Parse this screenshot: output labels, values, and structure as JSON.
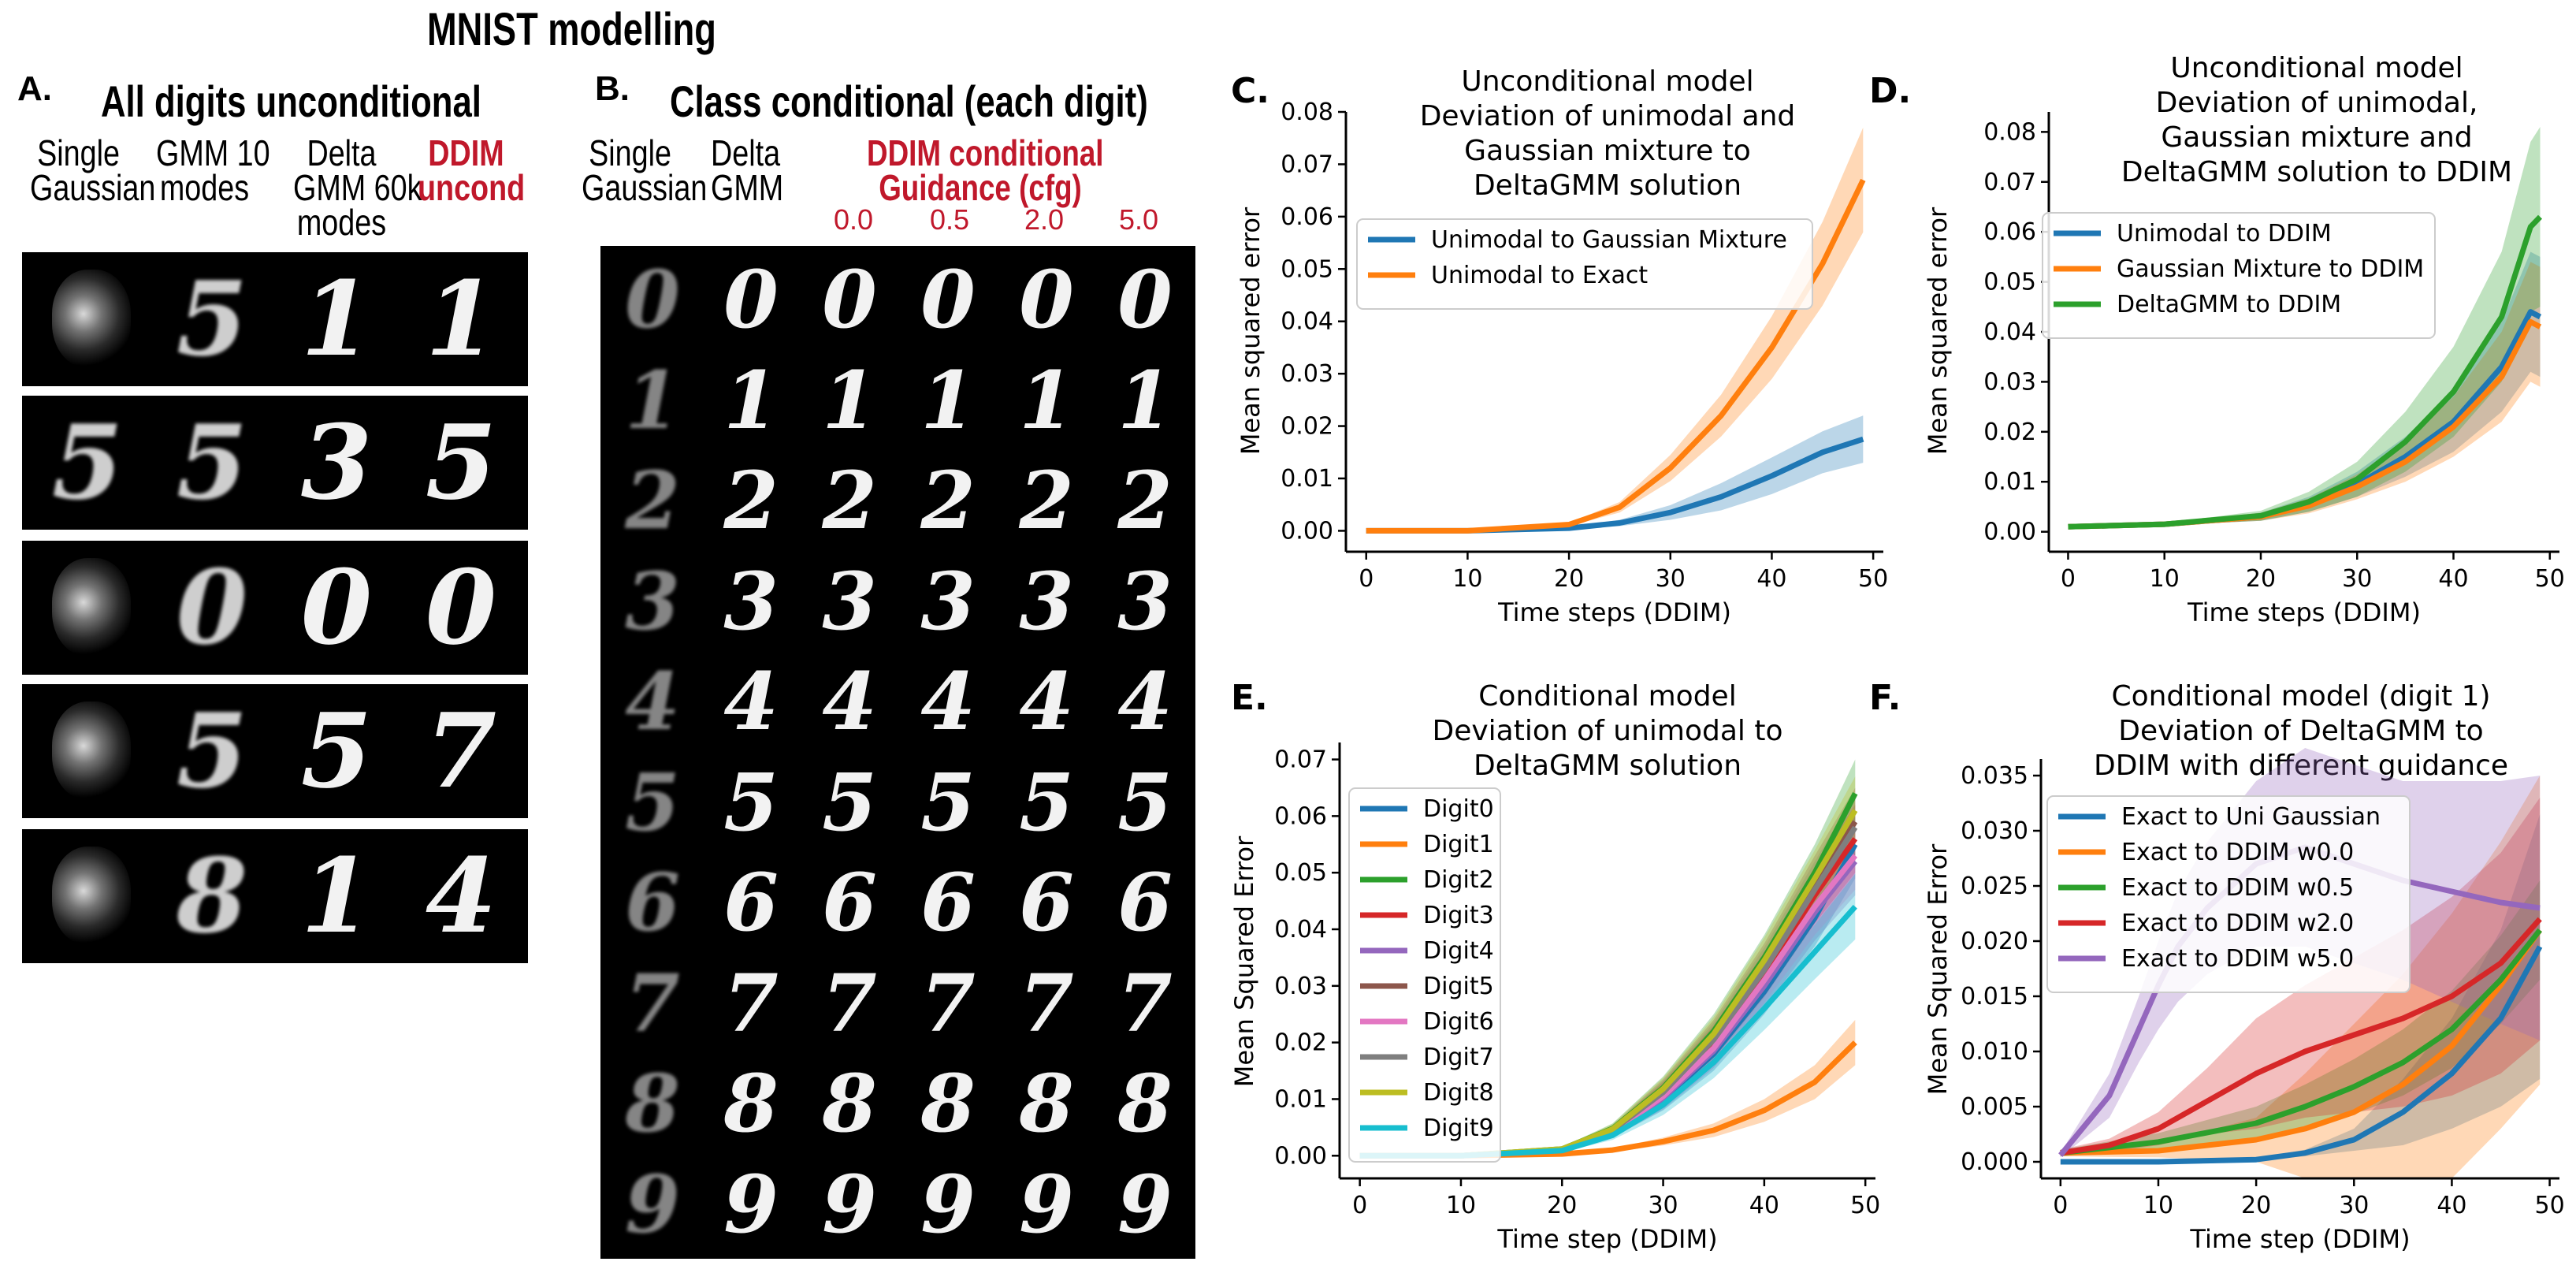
{
  "figure": {
    "title": "MNIST modelling",
    "panelA": {
      "letter": "A.",
      "title": "All digits unconditional",
      "columns": [
        {
          "lines": [
            "Single",
            "Gaussian"
          ],
          "highlight": false
        },
        {
          "lines": [
            "GMM 10",
            "modes"
          ],
          "highlight": false
        },
        {
          "lines": [
            "Delta",
            "GMM 60k",
            "modes"
          ],
          "highlight": false
        },
        {
          "lines": [
            "DDIM",
            "uncond"
          ],
          "highlight": true
        }
      ],
      "rows": [
        [
          "blob",
          "5",
          "1",
          "1"
        ],
        [
          "5",
          "5",
          "3",
          "5"
        ],
        [
          "blob",
          "0",
          "0",
          "0"
        ],
        [
          "blob",
          "5",
          "5",
          "7"
        ],
        [
          "blob",
          "8",
          "1",
          "4"
        ]
      ]
    },
    "panelB": {
      "letter": "B.",
      "title": "Class conditional (each digit)",
      "col_single": [
        "Single",
        "Gaussian"
      ],
      "col_delta": [
        "Delta",
        "GMM"
      ],
      "ddim_header": [
        "DDIM conditional",
        "Guidance (cfg)"
      ],
      "guidance_values": [
        "0.0",
        "0.5",
        "2.0",
        "5.0"
      ],
      "digits": [
        "0",
        "1",
        "2",
        "3",
        "4",
        "5",
        "6",
        "7",
        "8",
        "9"
      ]
    }
  },
  "colors": {
    "accent_red": "#c0182b",
    "blue": "#1f77b4",
    "orange": "#ff7f0e",
    "green": "#2ca02c",
    "red": "#d62728",
    "purple": "#9467bd"
  },
  "chart_data": [
    {
      "id": "C",
      "letter": "C.",
      "type": "line",
      "title": [
        "Unconditional model",
        "Deviation of unimodal and",
        "Gaussian mixture to",
        "DeltaGMM solution"
      ],
      "xlabel": "Time steps (DDIM)",
      "ylabel": "Mean squared error",
      "xlim": [
        -2,
        51
      ],
      "ylim": [
        -0.004,
        0.08
      ],
      "xticks": [
        0,
        10,
        20,
        30,
        40,
        50
      ],
      "xtick_labels": [
        "0",
        "10",
        "20",
        "30",
        "40",
        "50"
      ],
      "yticks": [
        0,
        0.01,
        0.02,
        0.03,
        0.04,
        0.05,
        0.06,
        0.07,
        0.08
      ],
      "ytick_labels": [
        "0.00",
        "0.01",
        "0.02",
        "0.03",
        "0.04",
        "0.05",
        "0.06",
        "0.07",
        "0.08"
      ],
      "legend_pos": "upper-left",
      "series": [
        {
          "name": "Unimodal to Gaussian Mixture",
          "color": "#1f77b4",
          "x": [
            0,
            10,
            20,
            25,
            30,
            35,
            40,
            45,
            49
          ],
          "y": [
            0.0,
            0.0,
            0.0005,
            0.0015,
            0.0035,
            0.0065,
            0.0105,
            0.015,
            0.0175
          ],
          "band": [
            0.0,
            0.0,
            0.0002,
            0.0006,
            0.0014,
            0.0026,
            0.0035,
            0.004,
            0.0045
          ]
        },
        {
          "name": "Unimodal to Exact",
          "color": "#ff7f0e",
          "x": [
            0,
            10,
            20,
            25,
            30,
            35,
            40,
            45,
            49
          ],
          "y": [
            0.0,
            0.0,
            0.0012,
            0.0045,
            0.012,
            0.022,
            0.035,
            0.051,
            0.067
          ],
          "band": [
            0.0,
            0.0,
            0.0003,
            0.001,
            0.0025,
            0.004,
            0.006,
            0.008,
            0.01
          ]
        }
      ]
    },
    {
      "id": "D",
      "letter": "D.",
      "type": "line",
      "title": [
        "Unconditional model",
        "Deviation of unimodal,",
        "Gaussian mixture and",
        "DeltaGMM solution to DDIM"
      ],
      "xlabel": "Time steps (DDIM)",
      "ylabel": "Mean squared error",
      "xlim": [
        -2,
        51
      ],
      "ylim": [
        -0.004,
        0.084
      ],
      "xticks": [
        0,
        10,
        20,
        30,
        40,
        50
      ],
      "xtick_labels": [
        "0",
        "10",
        "20",
        "30",
        "40",
        "50"
      ],
      "yticks": [
        0,
        0.01,
        0.02,
        0.03,
        0.04,
        0.05,
        0.06,
        0.07,
        0.08
      ],
      "ytick_labels": [
        "0.00",
        "0.01",
        "0.02",
        "0.03",
        "0.04",
        "0.05",
        "0.06",
        "0.07",
        "0.08"
      ],
      "legend_pos": "upper-left",
      "series": [
        {
          "name": "Unimodal to DDIM",
          "color": "#1f77b4",
          "x": [
            0,
            10,
            20,
            25,
            30,
            35,
            40,
            45,
            48,
            49
          ],
          "y": [
            0.001,
            0.0015,
            0.003,
            0.0055,
            0.0095,
            0.015,
            0.022,
            0.033,
            0.044,
            0.043
          ],
          "band": [
            0.0,
            0.0002,
            0.0008,
            0.0015,
            0.0025,
            0.004,
            0.006,
            0.009,
            0.012,
            0.012
          ]
        },
        {
          "name": "Gaussian Mixture to DDIM",
          "color": "#ff7f0e",
          "x": [
            0,
            10,
            20,
            25,
            30,
            35,
            40,
            45,
            48,
            49
          ],
          "y": [
            0.001,
            0.0015,
            0.003,
            0.0052,
            0.009,
            0.014,
            0.021,
            0.031,
            0.042,
            0.041
          ],
          "band": [
            0.0,
            0.0002,
            0.0008,
            0.0015,
            0.0025,
            0.004,
            0.006,
            0.009,
            0.012,
            0.012
          ]
        },
        {
          "name": "DeltaGMM to DDIM",
          "color": "#2ca02c",
          "x": [
            0,
            10,
            20,
            25,
            30,
            35,
            40,
            45,
            48,
            49
          ],
          "y": [
            0.001,
            0.0015,
            0.0032,
            0.006,
            0.0105,
            0.018,
            0.028,
            0.043,
            0.061,
            0.063
          ],
          "band": [
            0.0,
            0.0002,
            0.001,
            0.002,
            0.0035,
            0.006,
            0.009,
            0.013,
            0.017,
            0.018
          ]
        }
      ]
    },
    {
      "id": "E",
      "letter": "E.",
      "type": "line",
      "title": [
        "Conditional model",
        "Deviation of unimodal to",
        "DeltaGMM solution"
      ],
      "xlabel": "Time step (DDIM)",
      "ylabel": "Mean Squared Error",
      "xlim": [
        -2,
        51
      ],
      "ylim": [
        -0.004,
        0.073
      ],
      "xticks": [
        0,
        10,
        20,
        30,
        40,
        50
      ],
      "xtick_labels": [
        "0",
        "10",
        "20",
        "30",
        "40",
        "50"
      ],
      "yticks": [
        0,
        0.01,
        0.02,
        0.03,
        0.04,
        0.05,
        0.06,
        0.07
      ],
      "ytick_labels": [
        "0.00",
        "0.01",
        "0.02",
        "0.03",
        "0.04",
        "0.05",
        "0.06",
        "0.07"
      ],
      "legend_pos": "upper-left",
      "series": [
        {
          "name": "Digit0",
          "color": "#1f77b4",
          "x": [
            0,
            10,
            20,
            25,
            30,
            35,
            40,
            45,
            49
          ],
          "y": [
            0,
            0,
            0.001,
            0.004,
            0.01,
            0.018,
            0.029,
            0.042,
            0.055
          ],
          "band": [
            0,
            0,
            0.0003,
            0.0008,
            0.002,
            0.003,
            0.004,
            0.005,
            0.006
          ]
        },
        {
          "name": "Digit1",
          "color": "#ff7f0e",
          "x": [
            0,
            10,
            20,
            25,
            30,
            35,
            40,
            45,
            49
          ],
          "y": [
            0,
            0,
            0.0003,
            0.001,
            0.0025,
            0.0045,
            0.008,
            0.013,
            0.02
          ],
          "band": [
            0,
            0,
            0.0001,
            0.0003,
            0.0007,
            0.0012,
            0.002,
            0.003,
            0.004
          ]
        },
        {
          "name": "Digit2",
          "color": "#2ca02c",
          "x": [
            0,
            10,
            20,
            25,
            30,
            35,
            40,
            45,
            49
          ],
          "y": [
            0,
            0,
            0.0012,
            0.0048,
            0.012,
            0.022,
            0.035,
            0.05,
            0.064
          ],
          "band": [
            0,
            0,
            0.0003,
            0.0009,
            0.002,
            0.003,
            0.004,
            0.005,
            0.006
          ]
        },
        {
          "name": "Digit3",
          "color": "#d62728",
          "x": [
            0,
            10,
            20,
            25,
            30,
            35,
            40,
            45,
            49
          ],
          "y": [
            0,
            0,
            0.001,
            0.0044,
            0.011,
            0.02,
            0.032,
            0.046,
            0.056
          ],
          "band": [
            0,
            0,
            0.0003,
            0.0008,
            0.002,
            0.003,
            0.004,
            0.005,
            0.006
          ]
        },
        {
          "name": "Digit4",
          "color": "#9467bd",
          "x": [
            0,
            10,
            20,
            25,
            30,
            35,
            40,
            45,
            49
          ],
          "y": [
            0,
            0,
            0.001,
            0.004,
            0.0102,
            0.0185,
            0.03,
            0.043,
            0.052
          ],
          "band": [
            0,
            0,
            0.0003,
            0.0008,
            0.002,
            0.003,
            0.004,
            0.005,
            0.006
          ]
        },
        {
          "name": "Digit5",
          "color": "#8c564b",
          "x": [
            0,
            10,
            20,
            25,
            30,
            35,
            40,
            45,
            49
          ],
          "y": [
            0,
            0,
            0.0011,
            0.0046,
            0.0115,
            0.021,
            0.0335,
            0.048,
            0.059
          ],
          "band": [
            0,
            0,
            0.0003,
            0.0008,
            0.002,
            0.003,
            0.004,
            0.005,
            0.006
          ]
        },
        {
          "name": "Digit6",
          "color": "#e377c2",
          "x": [
            0,
            10,
            20,
            25,
            30,
            35,
            40,
            45,
            49
          ],
          "y": [
            0,
            0,
            0.001,
            0.0042,
            0.0105,
            0.019,
            0.031,
            0.044,
            0.053
          ],
          "band": [
            0,
            0,
            0.0003,
            0.0008,
            0.002,
            0.003,
            0.004,
            0.005,
            0.006
          ]
        },
        {
          "name": "Digit7",
          "color": "#7f7f7f",
          "x": [
            0,
            10,
            20,
            25,
            30,
            35,
            40,
            45,
            49
          ],
          "y": [
            0,
            0,
            0.0011,
            0.0045,
            0.0112,
            0.0205,
            0.0328,
            0.047,
            0.058
          ],
          "band": [
            0,
            0,
            0.0003,
            0.0008,
            0.002,
            0.003,
            0.004,
            0.005,
            0.006
          ]
        },
        {
          "name": "Digit8",
          "color": "#bcbd22",
          "x": [
            0,
            10,
            20,
            25,
            30,
            35,
            40,
            45,
            49
          ],
          "y": [
            0,
            0,
            0.0012,
            0.0047,
            0.0118,
            0.0215,
            0.0345,
            0.049,
            0.061
          ],
          "band": [
            0,
            0,
            0.0003,
            0.0009,
            0.002,
            0.003,
            0.004,
            0.005,
            0.006
          ]
        },
        {
          "name": "Digit9",
          "color": "#17becf",
          "x": [
            0,
            10,
            20,
            25,
            30,
            35,
            40,
            45,
            49
          ],
          "y": [
            0,
            0,
            0.0009,
            0.0036,
            0.009,
            0.0165,
            0.026,
            0.036,
            0.044
          ],
          "band": [
            0,
            0,
            0.0003,
            0.0008,
            0.0018,
            0.0028,
            0.0038,
            0.0048,
            0.0058
          ]
        }
      ]
    },
    {
      "id": "F",
      "letter": "F.",
      "type": "line",
      "title": [
        "Conditional model (digit 1)",
        "Deviation of DeltaGMM to",
        "DDIM with different guidance"
      ],
      "xlabel": "Time step (DDIM)",
      "ylabel": "Mean Squared Error",
      "xlim": [
        -2,
        51
      ],
      "ylim": [
        -0.0015,
        0.0365
      ],
      "xticks": [
        0,
        10,
        20,
        30,
        40,
        50
      ],
      "xtick_labels": [
        "0",
        "10",
        "20",
        "30",
        "40",
        "50"
      ],
      "yticks": [
        0,
        0.005,
        0.01,
        0.015,
        0.02,
        0.025,
        0.03,
        0.035
      ],
      "ytick_labels": [
        "0.000",
        "0.005",
        "0.010",
        "0.015",
        "0.020",
        "0.025",
        "0.030",
        "0.035"
      ],
      "legend_pos": "upper-left",
      "series": [
        {
          "name": "Exact to Uni Gaussian",
          "color": "#1f77b4",
          "x": [
            0,
            10,
            20,
            25,
            30,
            35,
            40,
            45,
            49
          ],
          "y": [
            0,
            0,
            0.0002,
            0.0008,
            0.002,
            0.0045,
            0.008,
            0.013,
            0.0195
          ],
          "band": [
            0,
            0,
            0.0001,
            0.0003,
            0.001,
            0.003,
            0.005,
            0.008,
            0.012
          ]
        },
        {
          "name": "Exact to DDIM w0.0",
          "color": "#ff7f0e",
          "x": [
            0,
            10,
            20,
            25,
            30,
            35,
            40,
            45,
            49
          ],
          "y": [
            0.0008,
            0.001,
            0.002,
            0.003,
            0.0045,
            0.007,
            0.0105,
            0.016,
            0.021
          ],
          "band": [
            0.0003,
            0.0006,
            0.002,
            0.005,
            0.008,
            0.01,
            0.012,
            0.013,
            0.014
          ]
        },
        {
          "name": "Exact to DDIM w0.5",
          "color": "#2ca02c",
          "x": [
            0,
            10,
            20,
            25,
            30,
            35,
            40,
            45,
            49
          ],
          "y": [
            0.0008,
            0.0018,
            0.0035,
            0.005,
            0.0068,
            0.009,
            0.012,
            0.0165,
            0.021
          ],
          "band": [
            0.0003,
            0.0008,
            0.0015,
            0.002,
            0.0025,
            0.003,
            0.0035,
            0.004,
            0.0045
          ]
        },
        {
          "name": "Exact to DDIM w2.0",
          "color": "#d62728",
          "x": [
            0,
            5,
            10,
            15,
            20,
            25,
            30,
            35,
            40,
            45,
            49
          ],
          "y": [
            0.0008,
            0.0015,
            0.003,
            0.0055,
            0.008,
            0.01,
            0.0115,
            0.013,
            0.015,
            0.018,
            0.022
          ],
          "band": [
            0.0003,
            0.0006,
            0.0015,
            0.003,
            0.005,
            0.006,
            0.007,
            0.008,
            0.009,
            0.01,
            0.011
          ]
        },
        {
          "name": "Exact to DDIM w5.0",
          "color": "#9467bd",
          "x": [
            0,
            5,
            8,
            10,
            12,
            15,
            20,
            25,
            30,
            35,
            40,
            45,
            49
          ],
          "y": [
            0.0006,
            0.006,
            0.012,
            0.016,
            0.0195,
            0.023,
            0.027,
            0.0285,
            0.027,
            0.0255,
            0.0245,
            0.0235,
            0.023
          ],
          "band": [
            0.0002,
            0.002,
            0.003,
            0.004,
            0.005,
            0.006,
            0.0075,
            0.009,
            0.009,
            0.009,
            0.01,
            0.011,
            0.012
          ]
        }
      ]
    }
  ]
}
